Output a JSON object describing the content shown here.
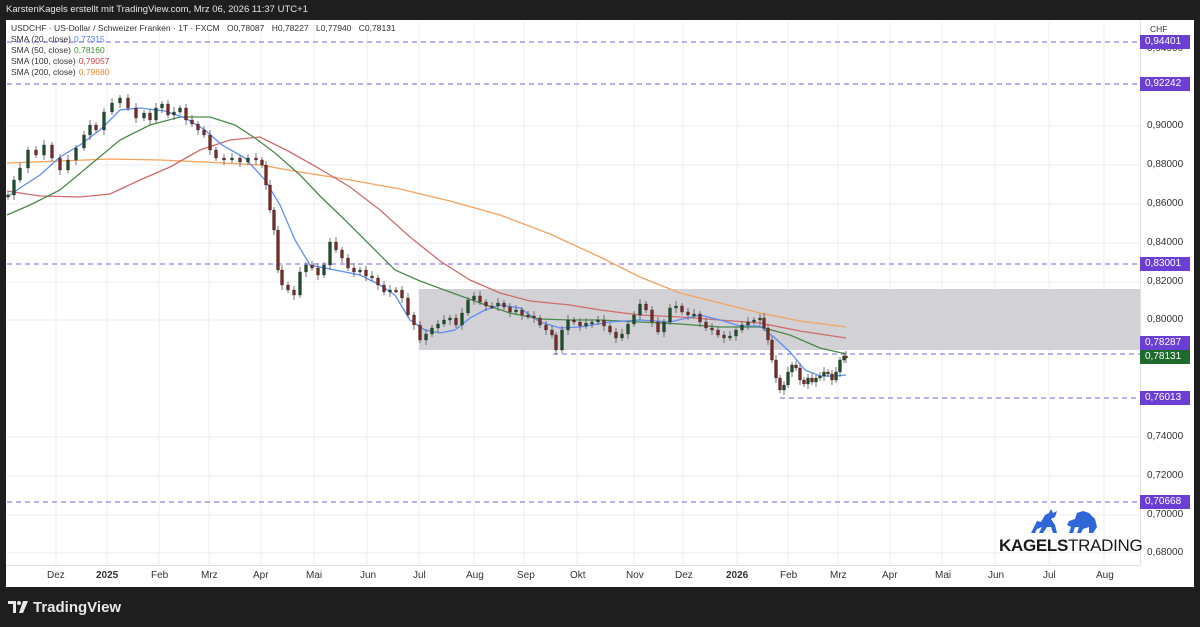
{
  "topbar": {
    "text": "KarstenKagels erstellt mit TradingView.com, Mrz 06, 2026 11:37 UTC+1"
  },
  "legend": {
    "symbol_line": "USDCHF · US-Dollar / Schweizer Franken · 1T · FXCM",
    "ohlc": {
      "open": "O0,78087",
      "high": "H0,78227",
      "low": "L0,77940",
      "close": "C0,78131"
    },
    "indicators": [
      {
        "label": "SMA (20, close)",
        "value": "0,77315",
        "color": "#4c7ff0"
      },
      {
        "label": "SMA (50, close)",
        "value": "0,78160",
        "color": "#3d8a3d"
      },
      {
        "label": "SMA (100, close)",
        "value": "0,79057",
        "color": "#d13d3d"
      },
      {
        "label": "SMA (200, close)",
        "value": "0,79680",
        "color": "#f08a24"
      }
    ]
  },
  "price_axis": {
    "currency": "CHF",
    "ticks": [
      "0,90000",
      "0,88000",
      "0,86000",
      "0,84000",
      "0,82000",
      "0,80000",
      "0,74000",
      "0,72000",
      "0,70000",
      "0,68000"
    ],
    "partially_hidden_tick": "0,94000",
    "labels": [
      {
        "value": "0,94401",
        "bg": "#6b3fd4"
      },
      {
        "value": "0,92242",
        "bg": "#6b3fd4"
      },
      {
        "value": "0,83001",
        "bg": "#6b3fd4"
      },
      {
        "value": "0,78287",
        "bg": "#6b3fd4"
      },
      {
        "value": "0,78131",
        "bg": "#1f6b2e"
      },
      {
        "value": "0,76013",
        "bg": "#6b3fd4"
      },
      {
        "value": "0,70668",
        "bg": "#6b3fd4"
      }
    ]
  },
  "time_axis": {
    "labels": [
      {
        "text": "Dez",
        "bold": false
      },
      {
        "text": "2025",
        "bold": true
      },
      {
        "text": "Feb",
        "bold": false
      },
      {
        "text": "Mrz",
        "bold": false
      },
      {
        "text": "Apr",
        "bold": false
      },
      {
        "text": "Mai",
        "bold": false
      },
      {
        "text": "Jun",
        "bold": false
      },
      {
        "text": "Jul",
        "bold": false
      },
      {
        "text": "Aug",
        "bold": false
      },
      {
        "text": "Sep",
        "bold": false
      },
      {
        "text": "Okt",
        "bold": false
      },
      {
        "text": "Nov",
        "bold": false
      },
      {
        "text": "Dez",
        "bold": false
      },
      {
        "text": "2026",
        "bold": true
      },
      {
        "text": "Feb",
        "bold": false
      },
      {
        "text": "Mrz",
        "bold": false
      },
      {
        "text": "Apr",
        "bold": false
      },
      {
        "text": "Mai",
        "bold": false
      },
      {
        "text": "Jun",
        "bold": false
      },
      {
        "text": "Jul",
        "bold": false
      },
      {
        "text": "Aug",
        "bold": false
      }
    ]
  },
  "branding": {
    "kagels_bold": "KAGELS",
    "kagels_thin": "TRADING",
    "tradingview": "TradingView"
  },
  "chart_data": {
    "type": "candlestick",
    "title": "USDCHF · US-Dollar / Schweizer Franken · 1T · FXCM",
    "xlabel": "",
    "ylabel": "CHF",
    "ylim": [
      0.675,
      0.955
    ],
    "grid": true,
    "legend_position": "top-left",
    "last_ohlc": {
      "open": 0.78087,
      "high": 0.78227,
      "low": 0.7794,
      "close": 0.78131
    },
    "x_ticks": [
      "Dez",
      "2025",
      "Feb",
      "Mrz",
      "Apr",
      "Mai",
      "Jun",
      "Jul",
      "Aug",
      "Sep",
      "Okt",
      "Nov",
      "Dez",
      "2026",
      "Feb",
      "Mrz",
      "Apr",
      "Mai",
      "Jun",
      "Jul",
      "Aug"
    ],
    "y_ticks": [
      0.9,
      0.88,
      0.86,
      0.84,
      0.82,
      0.8,
      0.74,
      0.72,
      0.7,
      0.68
    ],
    "horizontal_levels": [
      0.94401,
      0.92242,
      0.83001,
      0.78287,
      0.76013,
      0.70668
    ],
    "zone": {
      "from": 0.7835,
      "to": 0.8155,
      "start": "Jul 2025",
      "label": "gray range box"
    },
    "approx_monthly_close": {
      "x": [
        "Nov 2024",
        "Dez 2024",
        "Jan 2025",
        "Feb 2025",
        "Mrz 2025",
        "Apr 2025",
        "Mai 2025",
        "Jun 2025",
        "Jul 2025",
        "Aug 2025",
        "Sep 2025",
        "Okt 2025",
        "Nov 2025",
        "Dez 2025",
        "Jan 2026",
        "Feb 2026",
        "Mrz 2026"
      ],
      "values": [
        0.868,
        0.89,
        0.912,
        0.905,
        0.885,
        0.822,
        0.826,
        0.817,
        0.8,
        0.806,
        0.798,
        0.8,
        0.805,
        0.799,
        0.802,
        0.77,
        0.781
      ]
    },
    "series": [
      {
        "name": "SMA (20, close)",
        "last": 0.77315,
        "color": "#4c7ff0"
      },
      {
        "name": "SMA (50, close)",
        "last": 0.7816,
        "color": "#3d8a3d"
      },
      {
        "name": "SMA (100, close)",
        "last": 0.79057,
        "color": "#d13d3d"
      },
      {
        "name": "SMA (200, close)",
        "last": 0.7968,
        "color": "#f08a24"
      }
    ]
  }
}
